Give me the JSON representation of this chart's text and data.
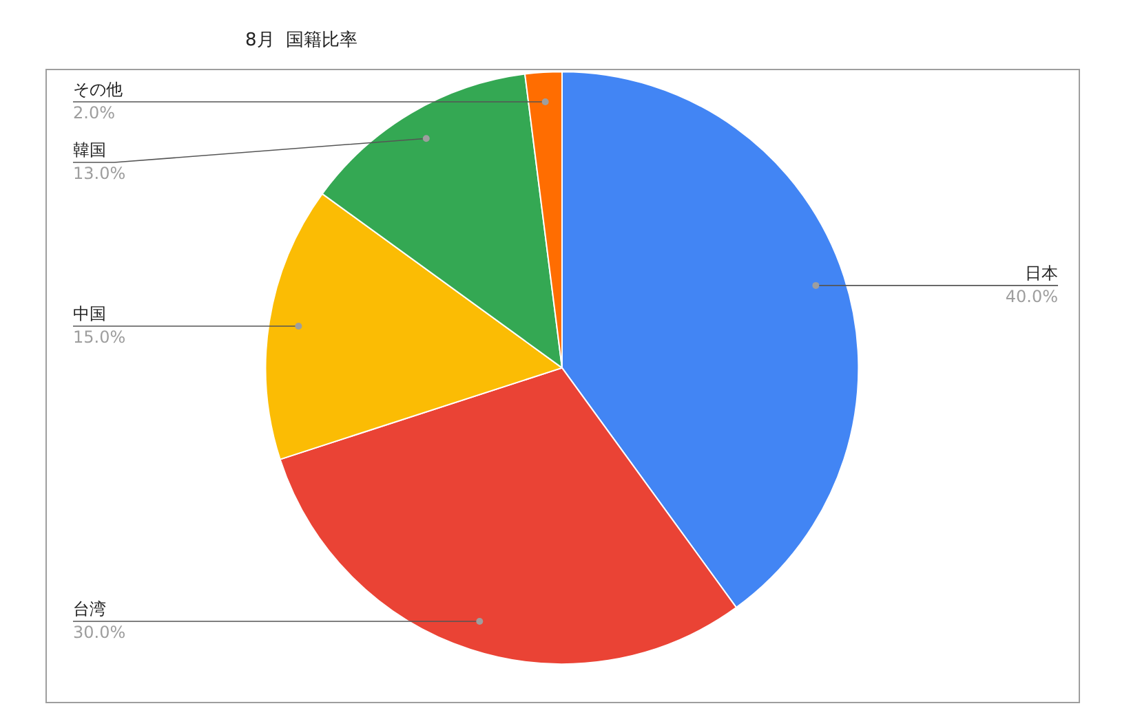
{
  "chart_data": {
    "type": "pie",
    "title": "8月  国籍比率",
    "categories": [
      "日本",
      "台湾",
      "中国",
      "韓国",
      "その他"
    ],
    "values": [
      40,
      30,
      15,
      13,
      2
    ],
    "colors": [
      "#4285f4",
      "#ea4335",
      "#fbbc04",
      "#34a853",
      "#ff6d01"
    ],
    "value_labels": [
      "40.0%",
      "30.0%",
      "15.0%",
      "13.0%",
      "2.0%"
    ],
    "legend": false
  }
}
